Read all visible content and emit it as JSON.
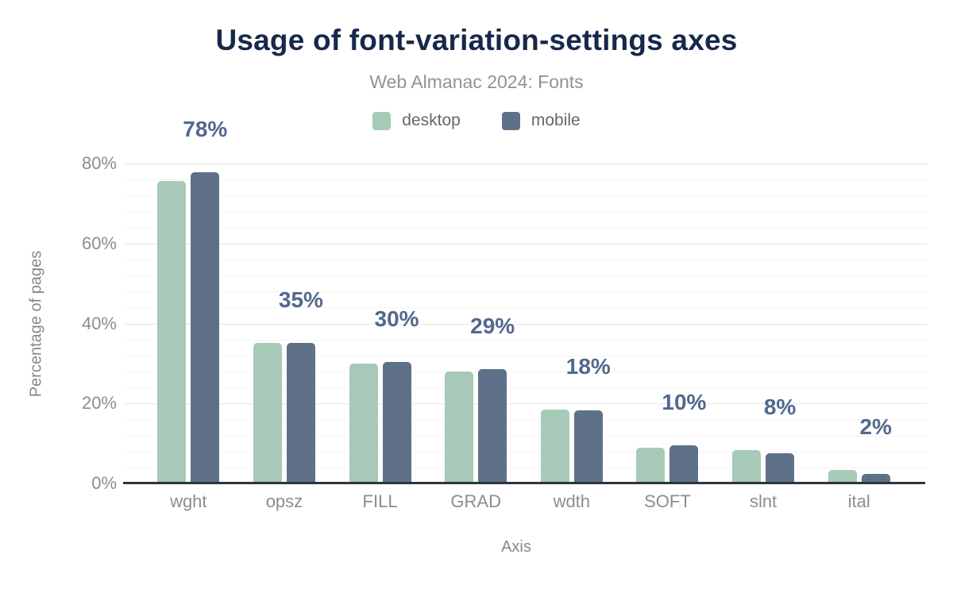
{
  "page": {
    "background": "#ffffff"
  },
  "chart_data": {
    "type": "bar",
    "title": "Usage of font-variation-settings axes",
    "subtitle": "Web Almanac 2024: Fonts",
    "xlabel": "Axis",
    "ylabel": "Percentage of pages",
    "categories": [
      "wght",
      "opsz",
      "FILL",
      "GRAD",
      "wdth",
      "SOFT",
      "slnt",
      "ital"
    ],
    "series": [
      {
        "name": "desktop",
        "color": "#a6cab7",
        "values": [
          75.6,
          35.2,
          30.0,
          27.9,
          18.4,
          8.9,
          8.4,
          3.4
        ]
      },
      {
        "name": "mobile",
        "color": "#5e7189",
        "values": [
          77.8,
          35.2,
          30.3,
          28.6,
          18.3,
          9.6,
          7.6,
          2.4
        ]
      }
    ],
    "value_labels": [
      "78%",
      "35%",
      "30%",
      "29%",
      "18%",
      "10%",
      "8%",
      "2%"
    ],
    "y_ticks": [
      {
        "value": 0,
        "label": "0%"
      },
      {
        "value": 20,
        "label": "20%"
      },
      {
        "value": 40,
        "label": "40%"
      },
      {
        "value": 60,
        "label": "60%"
      },
      {
        "value": 80,
        "label": "80%"
      }
    ],
    "ylim": [
      0,
      80
    ],
    "major_grid_step": 20,
    "minor_grid_step": 4,
    "grid": true,
    "legend_position": "top"
  },
  "colors": {
    "title": "#16294b",
    "subtitle": "#8f9399",
    "legend_text": "#63676e",
    "tick_text": "#8a8d93",
    "axis_title_text": "#85888e",
    "value_label": "#52688e",
    "axis_line": "#303338",
    "major_gridline": "#e7e7e7",
    "minor_gridline": "#f4f4f4"
  }
}
